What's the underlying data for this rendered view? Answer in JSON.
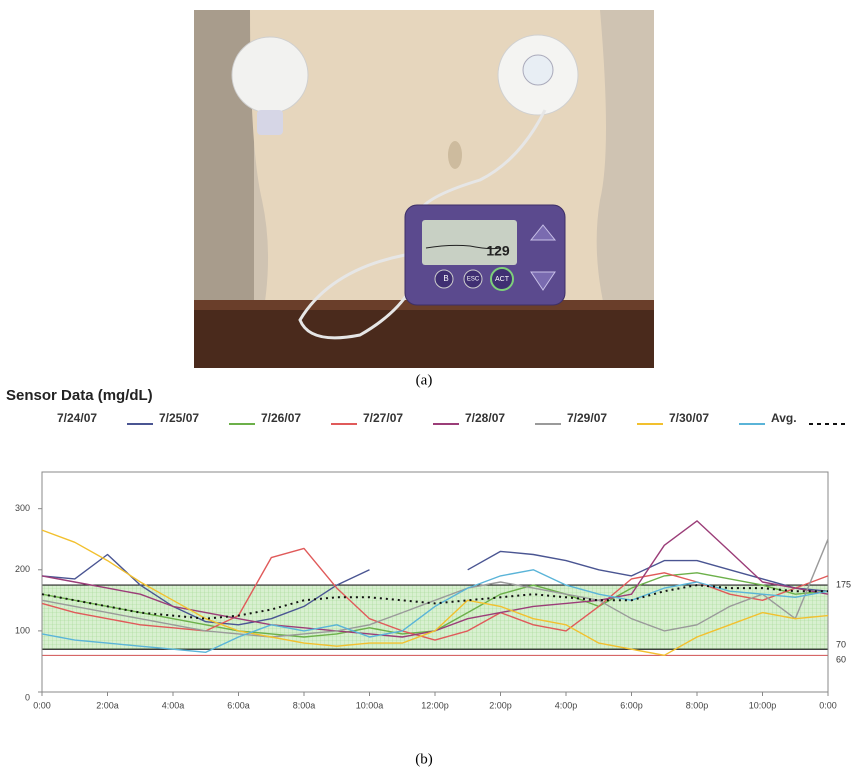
{
  "photo": {
    "caption": "(a)",
    "screen_value": "129",
    "buttons": [
      "ACT",
      "ESC",
      "B"
    ]
  },
  "chart_caption": "(b)",
  "chart_data": {
    "type": "line",
    "title": "Sensor Data (mg/dL)",
    "x": [
      0,
      1,
      2,
      3,
      4,
      5,
      6,
      7,
      8,
      9,
      10,
      11,
      12,
      13,
      14,
      15,
      16,
      17,
      18,
      19,
      20,
      21,
      22,
      23,
      24
    ],
    "xlim": [
      0,
      24
    ],
    "xticks": [
      {
        "value": 0,
        "label": "0:00"
      },
      {
        "value": 2,
        "label": "2:00a"
      },
      {
        "value": 4,
        "label": "4:00a"
      },
      {
        "value": 6,
        "label": "6:00a"
      },
      {
        "value": 8,
        "label": "8:00a"
      },
      {
        "value": 10,
        "label": "10:00a"
      },
      {
        "value": 12,
        "label": "12:00p"
      },
      {
        "value": 14,
        "label": "2:00p"
      },
      {
        "value": 16,
        "label": "4:00p"
      },
      {
        "value": 18,
        "label": "6:00p"
      },
      {
        "value": 20,
        "label": "8:00p"
      },
      {
        "value": 22,
        "label": "10:00p"
      },
      {
        "value": 24,
        "label": "0:00"
      }
    ],
    "ylim": [
      0,
      360
    ],
    "yticks": [
      0,
      100,
      200,
      300
    ],
    "target_range": [
      70,
      175
    ],
    "low_line": 60,
    "series": [
      {
        "name": "7/24/07",
        "color": "#4a5592",
        "values": [
          190,
          185,
          225,
          175,
          140,
          115,
          110,
          120,
          140,
          175,
          200,
          null,
          null,
          200,
          230,
          225,
          215,
          200,
          190,
          215,
          215,
          200,
          185,
          170,
          165
        ]
      },
      {
        "name": "7/25/07",
        "color": "#6cb04a",
        "values": [
          160,
          150,
          140,
          130,
          120,
          110,
          100,
          95,
          90,
          95,
          105,
          95,
          100,
          130,
          160,
          175,
          160,
          140,
          170,
          190,
          195,
          185,
          175,
          160,
          165
        ]
      },
      {
        "name": "7/26/07",
        "color": "#e05a5a",
        "values": [
          145,
          130,
          120,
          110,
          105,
          100,
          125,
          220,
          235,
          170,
          120,
          100,
          85,
          100,
          130,
          110,
          100,
          140,
          185,
          195,
          180,
          160,
          150,
          170,
          190
        ]
      },
      {
        "name": "7/27/07",
        "color": "#9b3d78",
        "values": [
          190,
          180,
          170,
          160,
          140,
          130,
          120,
          110,
          105,
          100,
          95,
          90,
          100,
          120,
          130,
          140,
          145,
          150,
          160,
          240,
          280,
          230,
          180,
          170,
          160
        ]
      },
      {
        "name": "7/28/07",
        "color": "#9a9a9a",
        "values": [
          150,
          140,
          130,
          120,
          110,
          100,
          95,
          90,
          95,
          100,
          110,
          130,
          150,
          170,
          180,
          170,
          160,
          150,
          120,
          100,
          110,
          140,
          160,
          120,
          250
        ]
      },
      {
        "name": "7/29/07",
        "color": "#f2c02e",
        "values": [
          265,
          245,
          215,
          180,
          150,
          120,
          100,
          90,
          80,
          75,
          80,
          80,
          100,
          150,
          140,
          120,
          110,
          80,
          70,
          60,
          90,
          110,
          130,
          120,
          125
        ]
      },
      {
        "name": "7/30/07",
        "color": "#5ab4d8",
        "values": [
          95,
          85,
          80,
          75,
          70,
          65,
          90,
          110,
          100,
          110,
          90,
          100,
          140,
          170,
          190,
          200,
          175,
          160,
          150,
          170,
          180,
          165,
          160,
          155,
          165
        ]
      },
      {
        "name": "Avg.",
        "color": "#111111",
        "dash": true,
        "values": [
          160,
          150,
          140,
          130,
          125,
          120,
          125,
          135,
          150,
          155,
          155,
          150,
          145,
          150,
          155,
          160,
          155,
          150,
          150,
          165,
          175,
          170,
          170,
          165,
          165
        ]
      }
    ]
  }
}
